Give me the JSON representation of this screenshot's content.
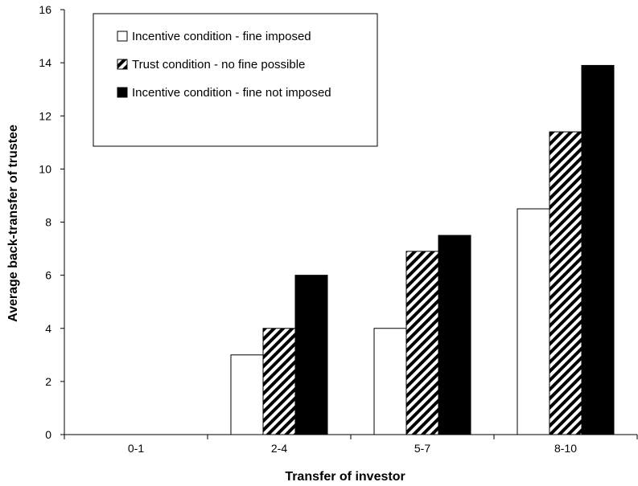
{
  "chart_data": {
    "type": "bar",
    "title": "",
    "xlabel": "Transfer of investor",
    "ylabel": "Average back-transfer of trustee",
    "categories": [
      "0-1",
      "2-4",
      "5-7",
      "8-10"
    ],
    "ylim": [
      0,
      16
    ],
    "yticks": [
      "0",
      "2",
      "4",
      "6",
      "8",
      "10",
      "12",
      "14",
      "16"
    ],
    "grid": false,
    "legend_position": "top-left",
    "series": [
      {
        "name": "Incentive condition - fine imposed",
        "fill": "white",
        "values": [
          null,
          3,
          4,
          8.5
        ]
      },
      {
        "name": "Trust condition - no fine possible",
        "fill": "hatched",
        "values": [
          null,
          4,
          6.9,
          11.4
        ]
      },
      {
        "name": "Incentive condition - fine not imposed",
        "fill": "black",
        "values": [
          null,
          6,
          7.5,
          13.9
        ]
      }
    ]
  }
}
